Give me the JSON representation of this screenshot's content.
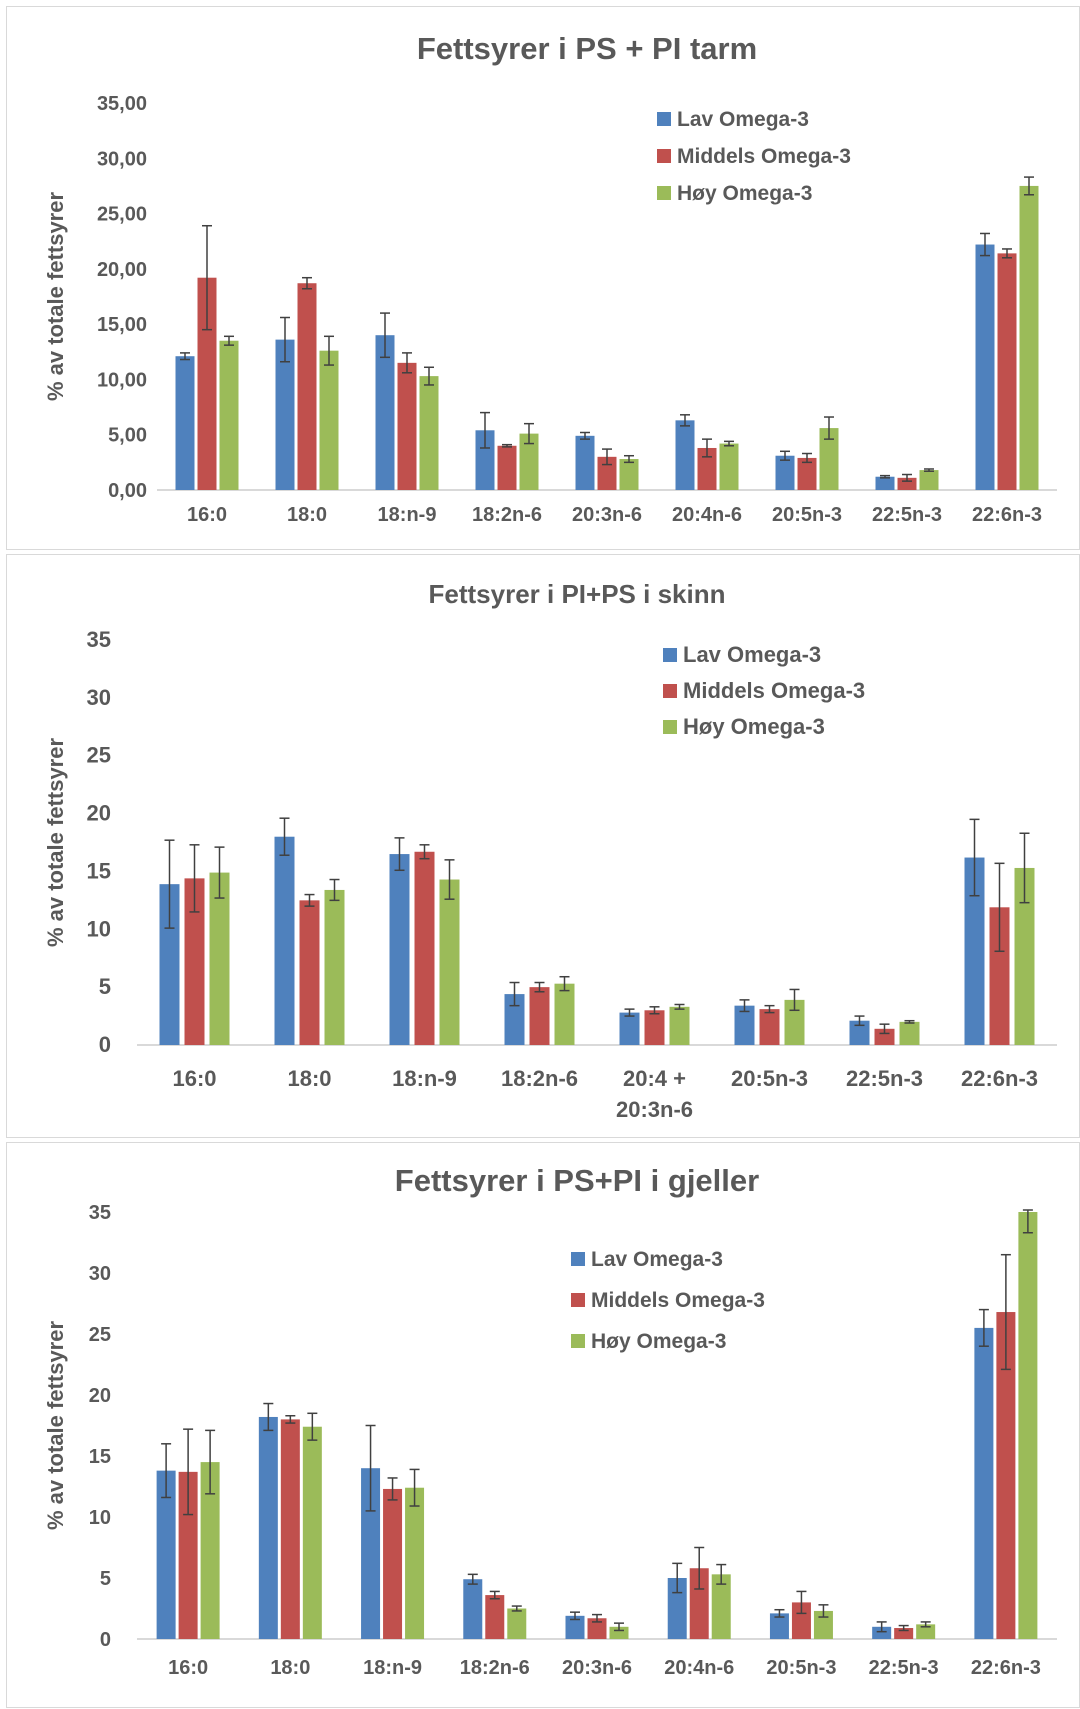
{
  "colors": {
    "lav": "#4f81bd",
    "middels": "#c0504d",
    "hoy": "#9bbb59",
    "text": "#595959",
    "axis": "#d9d9d9",
    "errorbar": "#404040"
  },
  "chart_data": [
    {
      "type": "bar",
      "title": "Fettsyrer i PS + PI tarm",
      "ylabel": "% av totale fettsyrer",
      "xlabel": "",
      "ylim": [
        0,
        35
      ],
      "yticks": [
        "0,00",
        "5,00",
        "10,00",
        "15,00",
        "20,00",
        "25,00",
        "30,00",
        "35,00"
      ],
      "grid": false,
      "legend": "top-right",
      "categories": [
        "16:0",
        "18:0",
        "18:n-9",
        "18:2n-6",
        "20:3n-6",
        "20:4n-6",
        "20:5n-3",
        "22:5n-3",
        "22:6n-3"
      ],
      "series": [
        {
          "name": "Lav Omega-3",
          "color": "#4f81bd",
          "values": [
            12.1,
            13.6,
            14.0,
            5.4,
            4.9,
            6.3,
            3.1,
            1.2,
            22.2
          ],
          "errors": [
            0.3,
            2.0,
            2.0,
            1.6,
            0.3,
            0.5,
            0.4,
            0.1,
            1.0
          ]
        },
        {
          "name": "Middels Omega-3",
          "color": "#c0504d",
          "values": [
            19.2,
            18.7,
            11.5,
            4.0,
            3.0,
            3.8,
            2.9,
            1.1,
            21.4
          ],
          "errors": [
            4.7,
            0.5,
            0.9,
            0.1,
            0.7,
            0.8,
            0.4,
            0.3,
            0.4
          ]
        },
        {
          "name": "Høy Omega-3",
          "color": "#9bbb59",
          "values": [
            13.5,
            12.6,
            10.3,
            5.1,
            2.8,
            4.2,
            5.6,
            1.8,
            27.5
          ],
          "errors": [
            0.4,
            1.3,
            0.8,
            0.9,
            0.3,
            0.2,
            1.0,
            0.1,
            0.8
          ]
        }
      ]
    },
    {
      "type": "bar",
      "title": "Fettsyrer i PI+PS i skinn",
      "ylabel": "% av totale fettsyrer",
      "xlabel": "",
      "ylim": [
        0,
        35
      ],
      "yticks": [
        "0",
        "5",
        "10",
        "15",
        "20",
        "25",
        "30",
        "35"
      ],
      "grid": false,
      "legend": "top-right",
      "categories": [
        "16:0",
        "18:0",
        "18:n-9",
        "18:2n-6",
        "20:4 +\n20:3n-6",
        "20:5n-3",
        "22:5n-3",
        "22:6n-3"
      ],
      "series": [
        {
          "name": "Lav Omega-3",
          "color": "#4f81bd",
          "values": [
            13.9,
            18.0,
            16.5,
            4.4,
            2.8,
            3.4,
            2.1,
            16.2
          ],
          "errors": [
            3.8,
            1.6,
            1.4,
            1.0,
            0.3,
            0.5,
            0.4,
            3.3
          ]
        },
        {
          "name": "Middels Omega-3",
          "color": "#c0504d",
          "values": [
            14.4,
            12.5,
            16.7,
            5.0,
            3.0,
            3.1,
            1.4,
            11.9
          ],
          "errors": [
            2.9,
            0.5,
            0.6,
            0.4,
            0.3,
            0.3,
            0.4,
            3.8
          ]
        },
        {
          "name": "Høy Omega-3",
          "color": "#9bbb59",
          "values": [
            14.9,
            13.4,
            14.3,
            5.3,
            3.3,
            3.9,
            2.0,
            15.3
          ],
          "errors": [
            2.2,
            0.9,
            1.7,
            0.6,
            0.2,
            0.9,
            0.1,
            3.0
          ]
        }
      ]
    },
    {
      "type": "bar",
      "title": "Fettsyrer i PS+PI i gjeller",
      "ylabel": "% av totale fettsyrer",
      "xlabel": "",
      "ylim": [
        0,
        35
      ],
      "yticks": [
        "0",
        "5",
        "10",
        "15",
        "20",
        "25",
        "30",
        "35"
      ],
      "grid": false,
      "legend": "top-right",
      "categories": [
        "16:0",
        "18:0",
        "18:n-9",
        "18:2n-6",
        "20:3n-6",
        "20:4n-6",
        "20:5n-3",
        "22:5n-3",
        "22:6n-3"
      ],
      "series": [
        {
          "name": "Lav Omega-3",
          "color": "#4f81bd",
          "values": [
            13.8,
            18.2,
            14.0,
            4.9,
            1.9,
            5.0,
            2.1,
            1.0,
            25.5
          ],
          "errors": [
            2.2,
            1.1,
            3.5,
            0.4,
            0.3,
            1.2,
            0.3,
            0.4,
            1.5
          ]
        },
        {
          "name": "Middels Omega-3",
          "color": "#c0504d",
          "values": [
            13.7,
            18.0,
            12.3,
            3.6,
            1.7,
            5.8,
            3.0,
            0.9,
            26.8
          ],
          "errors": [
            3.5,
            0.3,
            0.9,
            0.3,
            0.3,
            1.7,
            0.9,
            0.2,
            4.7
          ]
        },
        {
          "name": "Høy Omega-3",
          "color": "#9bbb59",
          "values": [
            14.5,
            17.4,
            12.4,
            2.5,
            1.0,
            5.3,
            2.3,
            1.2,
            35.0
          ],
          "errors": [
            2.6,
            1.1,
            1.5,
            0.2,
            0.3,
            0.8,
            0.5,
            0.2,
            1.7
          ]
        }
      ]
    }
  ]
}
